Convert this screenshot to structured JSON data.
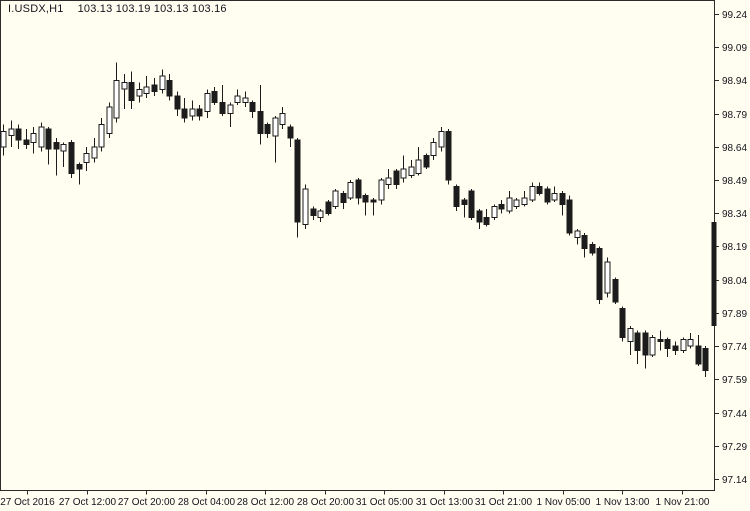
{
  "info_bar": {
    "symbol": "I.USDX,H1",
    "ohlc": "103.13 103.19 103.13 103.16"
  },
  "colors": {
    "background": "#fffef0",
    "frame": "#2b2b2b",
    "text": "#14141e",
    "bull_fill": "#ffffff",
    "bear_fill": "#1c1c1c",
    "outline": "#1c1c1c"
  },
  "chart_data": {
    "type": "candlestick",
    "symbol": "I.USDX",
    "timeframe": "H1",
    "grid": false,
    "legend_position": "none",
    "y_axis": {
      "side": "right",
      "min": 97.14,
      "max": 99.24,
      "step": 0.15,
      "labels": [
        "99.24",
        "99.09",
        "98.94",
        "98.79",
        "98.64",
        "98.49",
        "98.34",
        "98.19",
        "98.04",
        "97.89",
        "97.74",
        "97.59",
        "97.44",
        "97.29",
        "97.14"
      ]
    },
    "x_axis": {
      "labels": [
        "27 Oct 2016",
        "27 Oct 12:00",
        "27 Oct 20:00",
        "28 Oct 04:00",
        "28 Oct 12:00",
        "28 Oct 20:00",
        "31 Oct 05:00",
        "31 Oct 13:00",
        "31 Oct 21:00",
        "1 Nov 05:00",
        "1 Nov 13:00",
        "1 Nov 21:00"
      ]
    },
    "candles_format": [
      "open",
      "high",
      "low",
      "close"
    ],
    "candles": [
      [
        98.64,
        98.74,
        98.6,
        98.71
      ],
      [
        98.69,
        98.76,
        98.64,
        98.72
      ],
      [
        98.72,
        98.74,
        98.63,
        98.67
      ],
      [
        98.67,
        98.72,
        98.63,
        98.65
      ],
      [
        98.66,
        98.73,
        98.61,
        98.7
      ],
      [
        98.64,
        98.75,
        98.62,
        98.73
      ],
      [
        98.72,
        98.73,
        98.56,
        98.63
      ],
      [
        98.66,
        98.68,
        98.51,
        98.63
      ],
      [
        98.62,
        98.66,
        98.55,
        98.65
      ],
      [
        98.66,
        98.67,
        98.5,
        98.52
      ],
      [
        98.56,
        98.57,
        98.47,
        98.54
      ],
      [
        98.57,
        98.64,
        98.53,
        98.61
      ],
      [
        98.59,
        98.68,
        98.57,
        98.64
      ],
      [
        98.64,
        98.77,
        98.62,
        98.74
      ],
      [
        98.7,
        98.84,
        98.68,
        98.82
      ],
      [
        98.77,
        99.02,
        98.75,
        98.94
      ],
      [
        98.9,
        98.97,
        98.81,
        98.93
      ],
      [
        98.93,
        98.98,
        98.81,
        98.85
      ],
      [
        98.87,
        98.93,
        98.84,
        98.9
      ],
      [
        98.88,
        98.96,
        98.86,
        98.91
      ],
      [
        98.92,
        98.95,
        98.87,
        98.89
      ],
      [
        98.9,
        98.99,
        98.88,
        98.96
      ],
      [
        98.94,
        98.97,
        98.85,
        98.87
      ],
      [
        98.87,
        98.89,
        98.78,
        98.81
      ],
      [
        98.81,
        98.86,
        98.75,
        98.77
      ],
      [
        98.78,
        98.85,
        98.76,
        98.81
      ],
      [
        98.81,
        98.83,
        98.76,
        98.78
      ],
      [
        98.8,
        98.9,
        98.77,
        98.88
      ],
      [
        98.89,
        98.91,
        98.83,
        98.84
      ],
      [
        98.84,
        98.92,
        98.78,
        98.79
      ],
      [
        98.79,
        98.84,
        98.73,
        98.83
      ],
      [
        98.84,
        98.9,
        98.83,
        98.87
      ],
      [
        98.84,
        98.89,
        98.82,
        98.86
      ],
      [
        98.84,
        98.85,
        98.77,
        98.8
      ],
      [
        98.8,
        98.92,
        98.65,
        98.7
      ],
      [
        98.74,
        98.75,
        98.68,
        98.7
      ],
      [
        98.69,
        98.78,
        98.57,
        98.77
      ],
      [
        98.74,
        98.82,
        98.72,
        98.79
      ],
      [
        98.73,
        98.74,
        98.64,
        98.68
      ],
      [
        98.67,
        98.68,
        98.23,
        98.3
      ],
      [
        98.29,
        98.47,
        98.27,
        98.45
      ],
      [
        98.36,
        98.37,
        98.31,
        98.33
      ],
      [
        98.32,
        98.36,
        98.3,
        98.35
      ],
      [
        98.39,
        98.4,
        98.33,
        98.34
      ],
      [
        98.37,
        98.45,
        98.36,
        98.44
      ],
      [
        98.43,
        98.44,
        98.36,
        98.39
      ],
      [
        98.41,
        98.49,
        98.4,
        98.48
      ],
      [
        98.49,
        98.5,
        98.38,
        98.41
      ],
      [
        98.42,
        98.43,
        98.33,
        98.39
      ],
      [
        98.4,
        98.41,
        98.33,
        98.39
      ],
      [
        98.4,
        98.5,
        98.38,
        98.49
      ],
      [
        98.47,
        98.54,
        98.45,
        98.5
      ],
      [
        98.53,
        98.54,
        98.45,
        98.47
      ],
      [
        98.5,
        98.6,
        98.48,
        98.54
      ],
      [
        98.51,
        98.58,
        98.5,
        98.55
      ],
      [
        98.52,
        98.64,
        98.51,
        98.58
      ],
      [
        98.6,
        98.61,
        98.54,
        98.55
      ],
      [
        98.6,
        98.68,
        98.58,
        98.66
      ],
      [
        98.64,
        98.73,
        98.62,
        98.71
      ],
      [
        98.71,
        98.72,
        98.47,
        98.49
      ],
      [
        98.46,
        98.47,
        98.35,
        98.37
      ],
      [
        98.4,
        98.41,
        98.32,
        98.38
      ],
      [
        98.44,
        98.45,
        98.31,
        98.32
      ],
      [
        98.35,
        98.36,
        98.27,
        98.3
      ],
      [
        98.32,
        98.36,
        98.28,
        98.29
      ],
      [
        98.32,
        98.38,
        98.31,
        98.37
      ],
      [
        98.38,
        98.4,
        98.34,
        98.36
      ],
      [
        98.35,
        98.44,
        98.34,
        98.41
      ],
      [
        98.37,
        98.41,
        98.36,
        98.4
      ],
      [
        98.38,
        98.44,
        98.37,
        98.41
      ],
      [
        98.4,
        98.48,
        98.39,
        98.46
      ],
      [
        98.46,
        98.48,
        98.42,
        98.43
      ],
      [
        98.45,
        98.46,
        98.38,
        98.39
      ],
      [
        98.4,
        98.46,
        98.39,
        98.43
      ],
      [
        98.43,
        98.44,
        98.33,
        98.38
      ],
      [
        98.4,
        98.42,
        98.24,
        98.25
      ],
      [
        98.23,
        98.27,
        98.2,
        98.26
      ],
      [
        98.24,
        98.25,
        98.14,
        98.18
      ],
      [
        98.2,
        98.21,
        98.15,
        98.16
      ],
      [
        98.18,
        98.19,
        97.93,
        97.95
      ],
      [
        97.98,
        98.14,
        97.96,
        98.12
      ],
      [
        98.04,
        98.05,
        97.93,
        97.94
      ],
      [
        97.91,
        97.92,
        97.76,
        97.78
      ],
      [
        97.76,
        97.83,
        97.7,
        97.82
      ],
      [
        97.8,
        97.81,
        97.66,
        97.72
      ],
      [
        97.8,
        97.81,
        97.64,
        97.7
      ],
      [
        97.7,
        97.79,
        97.69,
        97.78
      ],
      [
        97.77,
        97.81,
        97.72,
        97.76
      ],
      [
        97.77,
        97.78,
        97.69,
        97.73
      ],
      [
        97.74,
        97.76,
        97.7,
        97.72
      ],
      [
        97.72,
        97.78,
        97.71,
        97.77
      ],
      [
        97.74,
        97.8,
        97.73,
        97.77
      ],
      [
        97.74,
        97.79,
        97.65,
        97.66
      ],
      [
        97.73,
        97.74,
        97.6,
        97.63
      ]
    ],
    "last_bar_clipped_at_axis": {
      "high": 98.3,
      "low": 97.83
    }
  }
}
